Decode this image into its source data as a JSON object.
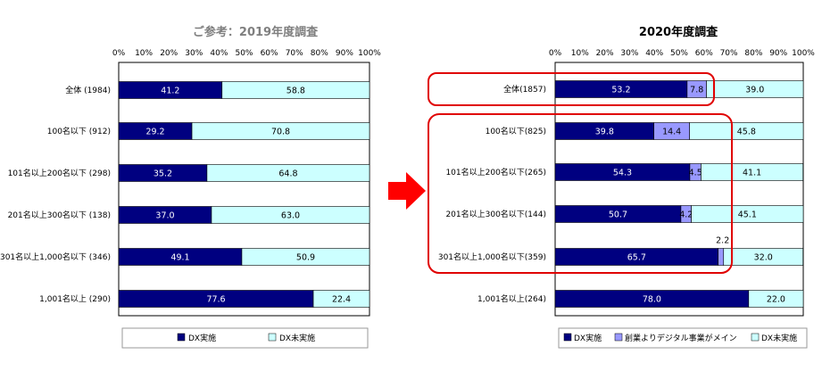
{
  "chart_data": [
    {
      "type": "bar",
      "title": "ご参考：2019年度調査",
      "stacked": true,
      "orientation": "horizontal",
      "xlim": [
        0,
        100
      ],
      "tick_labels": [
        "0%",
        "10%",
        "20%",
        "30%",
        "40%",
        "50%",
        "60%",
        "70%",
        "80%",
        "90%",
        "100%"
      ],
      "categories": [
        "全体 (1984)",
        "100名以下 (912)",
        "101名以上200名以下 (298)",
        "201名以上300名以下 (138)",
        "301名以上1,000名以下 (346)",
        "1,001名以上 (290)"
      ],
      "series": [
        {
          "name": "DX実施",
          "color": "#000080",
          "label_color": "#ffffff",
          "values": [
            41.2,
            29.2,
            35.2,
            37.0,
            49.1,
            77.6
          ]
        },
        {
          "name": "DX未実施",
          "color": "#ccffff",
          "label_color": "#000000",
          "values": [
            58.8,
            70.8,
            64.8,
            63.0,
            50.9,
            22.4
          ]
        }
      ],
      "legend_position": "bottom"
    },
    {
      "type": "bar",
      "title": "2020年度調査",
      "stacked": true,
      "orientation": "horizontal",
      "xlim": [
        0,
        100
      ],
      "tick_labels": [
        "0%",
        "10%",
        "20%",
        "30%",
        "40%",
        "50%",
        "60%",
        "70%",
        "80%",
        "90%",
        "100%"
      ],
      "categories": [
        "全体(1857)",
        "100名以下(825)",
        "101名以上200名以下(265)",
        "201名以上300名以下(144)",
        "301名以上1,000名以下(359)",
        "1,001名以上(264)"
      ],
      "series": [
        {
          "name": "DX実施",
          "color": "#000080",
          "label_color": "#ffffff",
          "values": [
            53.2,
            39.8,
            54.3,
            50.7,
            65.7,
            78.0
          ]
        },
        {
          "name": "創業よりデジタル事業がメイン",
          "color": "#9999ff",
          "label_color": "#000000",
          "values": [
            7.8,
            14.4,
            4.5,
            4.2,
            2.2,
            0
          ]
        },
        {
          "name": "DX未実施",
          "color": "#ccffff",
          "label_color": "#000000",
          "values": [
            39.0,
            45.8,
            41.1,
            45.1,
            32.0,
            22.0
          ]
        }
      ],
      "legend_position": "bottom"
    }
  ],
  "arrow_color": "#ff0000",
  "highlight_color": "#e00000"
}
